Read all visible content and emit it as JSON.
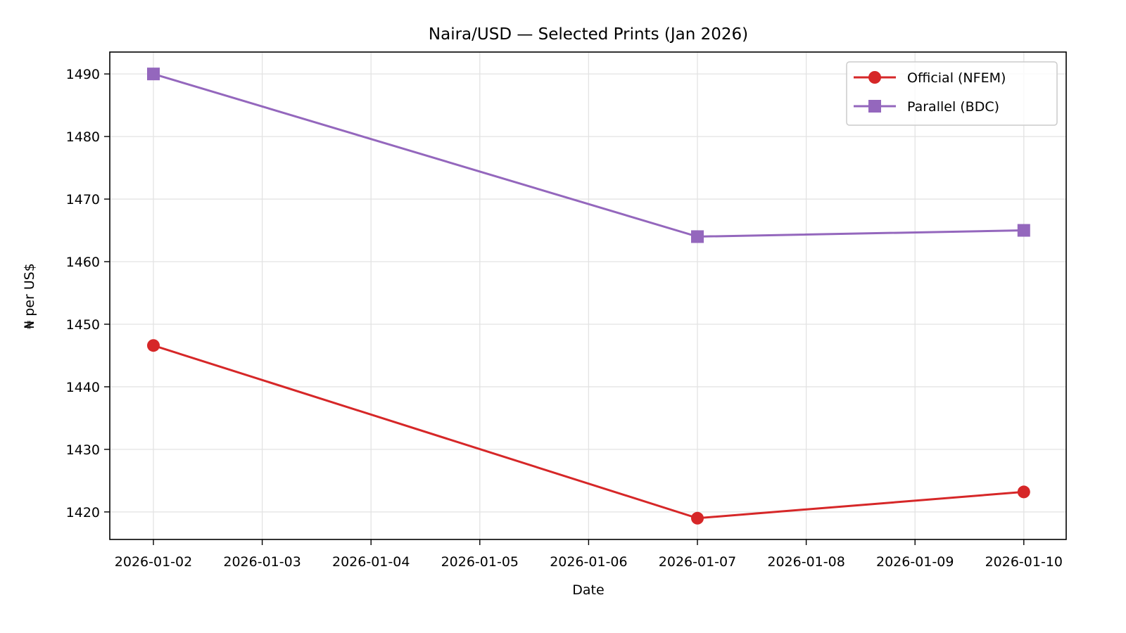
{
  "chart_data": {
    "type": "line",
    "title": "Naira/USD — Selected Prints (Jan 2026)",
    "xlabel": "Date",
    "ylabel": "₦ per US$",
    "x": [
      "2026-01-02",
      "2026-01-07",
      "2026-01-10"
    ],
    "x_ticks": [
      "2026-01-02",
      "2026-01-03",
      "2026-01-04",
      "2026-01-05",
      "2026-01-06",
      "2026-01-07",
      "2026-01-08",
      "2026-01-09",
      "2026-01-10"
    ],
    "y_ticks": [
      1420,
      1430,
      1440,
      1450,
      1460,
      1470,
      1480,
      1490
    ],
    "ylim": [
      1415.6,
      1493.5
    ],
    "grid": true,
    "legend_position": "upper right",
    "series": [
      {
        "name": "Official (NFEM)",
        "color": "#d62728",
        "marker": "circle",
        "values": [
          1446.6,
          1419.0,
          1423.2
        ]
      },
      {
        "name": "Parallel (BDC)",
        "color": "#9467bd",
        "marker": "square",
        "values": [
          1490.0,
          1464.0,
          1465.0
        ]
      }
    ]
  }
}
